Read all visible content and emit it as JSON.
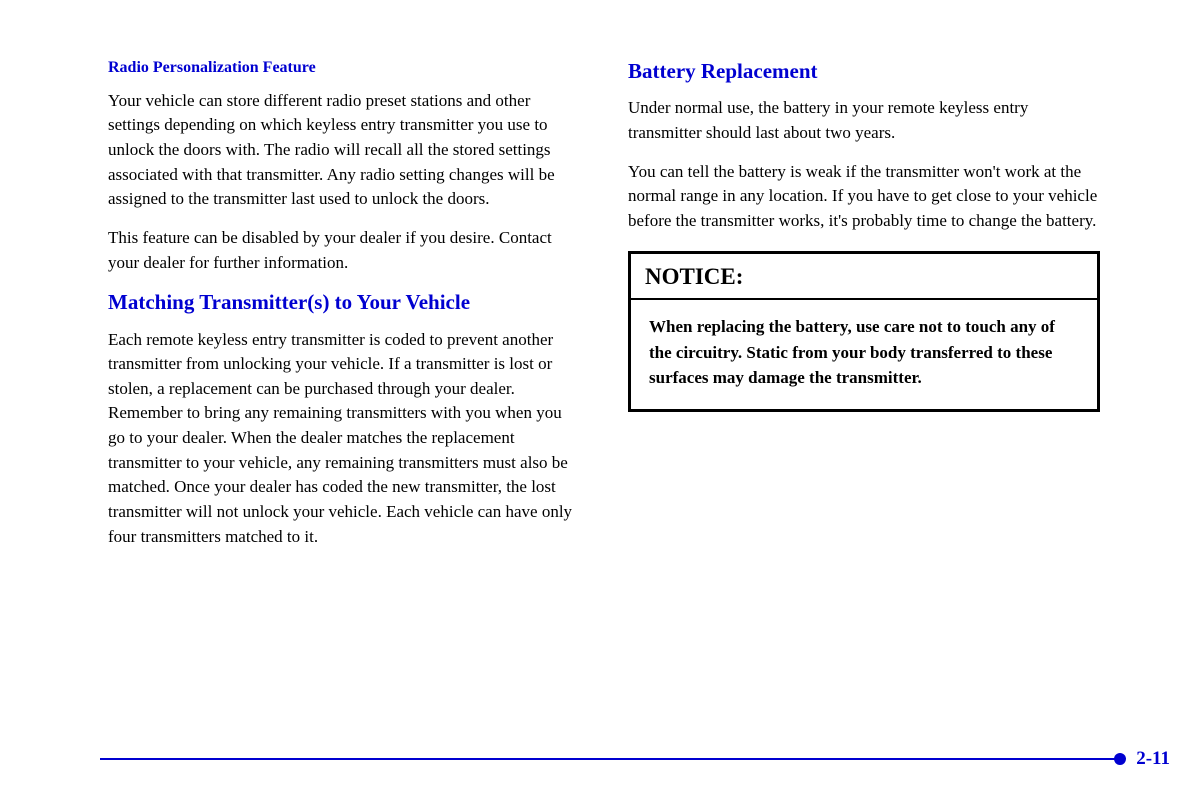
{
  "left": {
    "subhead": "Radio Personalization Feature",
    "para1": "Your vehicle can store different radio preset stations and other settings depending on which keyless entry transmitter you use to unlock the doors with. The radio will recall all the stored settings associated with that transmitter. Any radio setting changes will be assigned to the transmitter last used to unlock the doors.",
    "para2": "This feature can be disabled by your dealer if you desire. Contact your dealer for further information.",
    "heading2": "Matching Transmitter(s) to Your Vehicle",
    "para3": "Each remote keyless entry transmitter is coded to prevent another transmitter from unlocking your vehicle. If a transmitter is lost or stolen, a replacement can be purchased through your dealer. Remember to bring any remaining transmitters with you when you go to your dealer. When the dealer matches the replacement transmitter to your vehicle, any remaining transmitters must also be matched. Once your dealer has coded the new transmitter, the lost transmitter will not unlock your vehicle. Each vehicle can have only four transmitters matched to it."
  },
  "right": {
    "heading1": "Battery Replacement",
    "para1": "Under normal use, the battery in your remote keyless entry transmitter should last about two years.",
    "para2": "You can tell the battery is weak if the transmitter won't work at the normal range in any location. If you have to get close to your vehicle before the transmitter works, it's probably time to change the battery.",
    "notice_title": "NOTICE:",
    "notice_body": "When replacing the battery, use care not to touch any of the circuitry. Static from your body transferred to these surfaces may damage the transmitter."
  },
  "page_number": "2-11",
  "colors": {
    "accent": "#0000d0",
    "text": "#000000",
    "background": "#ffffff"
  }
}
